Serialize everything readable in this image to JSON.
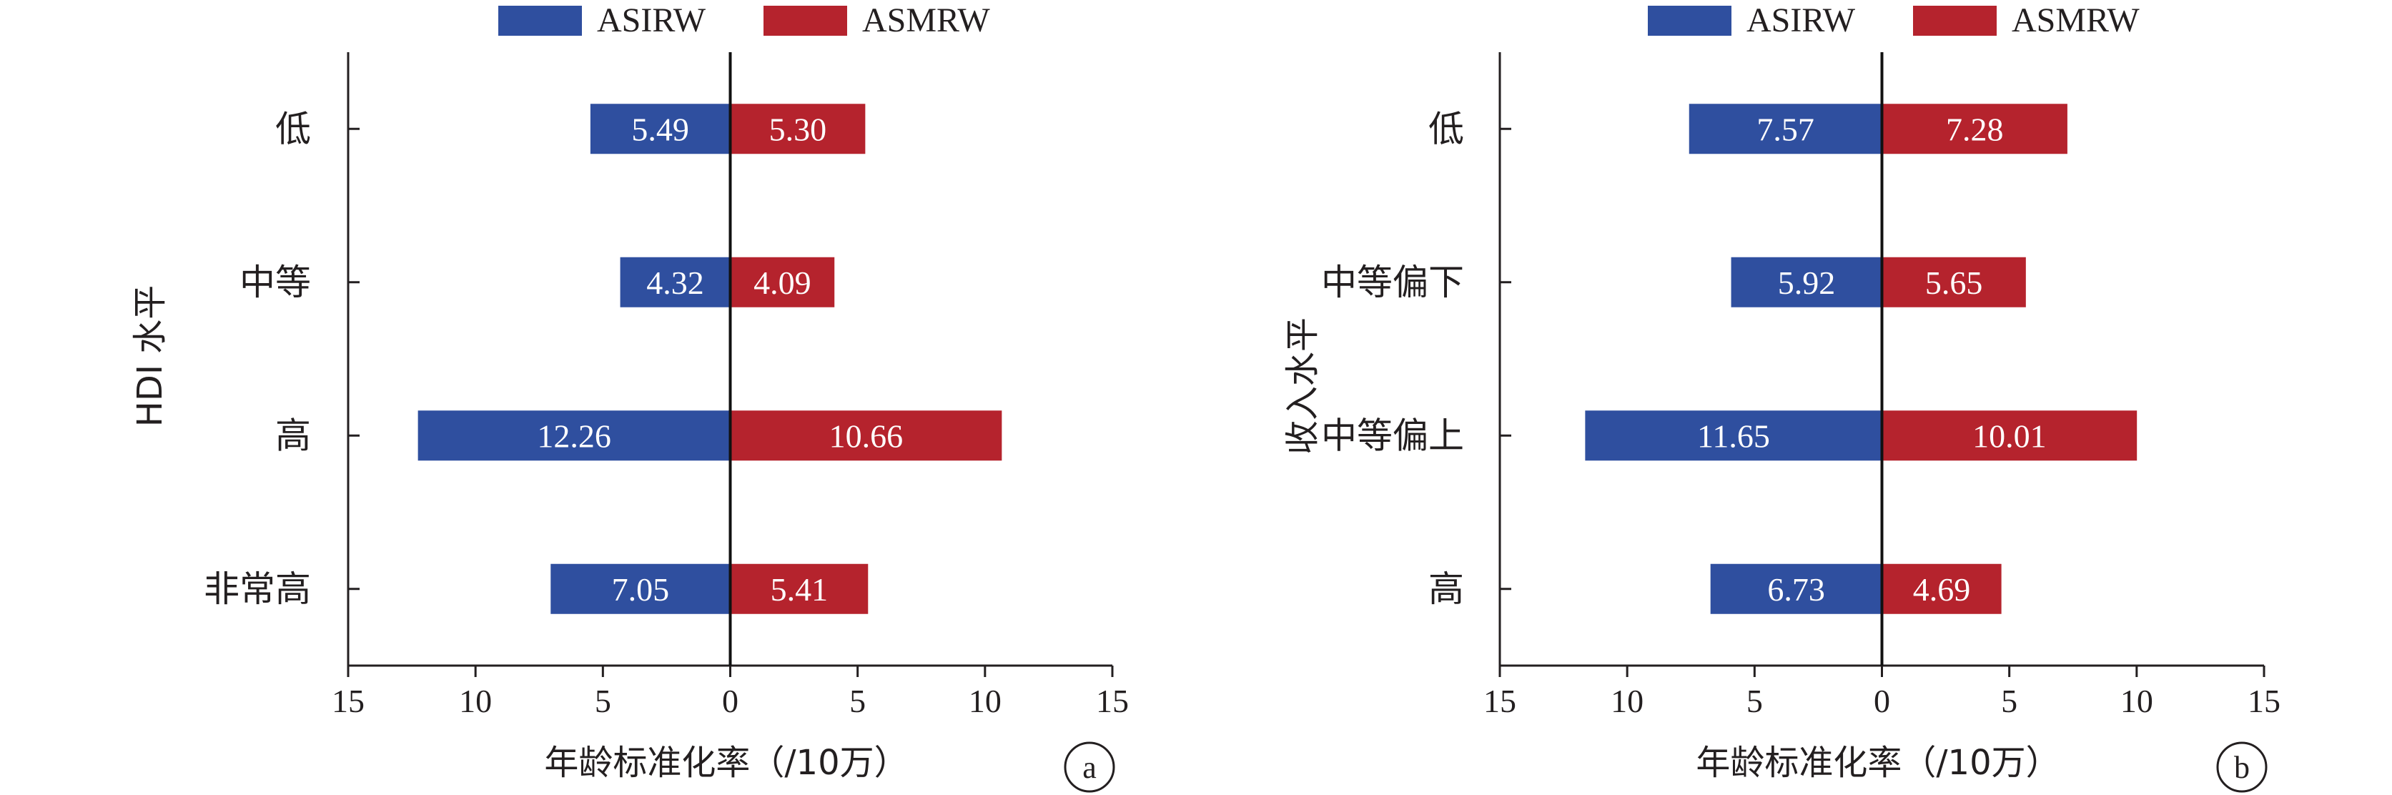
{
  "chart_data": [
    {
      "type": "bar",
      "orientation": "horizontal-diverging",
      "panel_label": "a",
      "ylabel": "HDI 水平",
      "xlabel": "年龄标准化率（/10万）",
      "categories": [
        "低",
        "中等",
        "高",
        "非常高"
      ],
      "series": [
        {
          "name": "ASIRW",
          "values": [
            5.49,
            4.32,
            12.26,
            7.05
          ],
          "value_labels": [
            "5.49",
            "4.32",
            "12.26",
            "7.05"
          ],
          "color": "#2f4f9f",
          "direction": "left"
        },
        {
          "name": "ASMRW",
          "values": [
            5.3,
            4.09,
            10.66,
            5.41
          ],
          "value_labels": [
            "5.30",
            "4.09",
            "10.66",
            "5.41"
          ],
          "color": "#b5232d",
          "direction": "right"
        }
      ],
      "xlim": [
        -15,
        15
      ],
      "xticks": [
        -15,
        -10,
        -5,
        0,
        5,
        10,
        15
      ],
      "xtick_labels": [
        "15",
        "10",
        "5",
        "0",
        "5",
        "10",
        "15"
      ],
      "legend": "top-center",
      "grid": false
    },
    {
      "type": "bar",
      "orientation": "horizontal-diverging",
      "panel_label": "b",
      "ylabel": "收入水平",
      "xlabel": "年龄标准化率（/10万）",
      "categories": [
        "低",
        "中等偏下",
        "中等偏上",
        "高"
      ],
      "series": [
        {
          "name": "ASIRW",
          "values": [
            7.57,
            5.92,
            11.65,
            6.73
          ],
          "value_labels": [
            "7.57",
            "5.92",
            "11.65",
            "6.73"
          ],
          "color": "#2f4f9f",
          "direction": "left"
        },
        {
          "name": "ASMRW",
          "values": [
            7.28,
            5.65,
            10.01,
            4.69
          ],
          "value_labels": [
            "7.28",
            "5.65",
            "10.01",
            "4.69"
          ],
          "color": "#b5232d",
          "direction": "right"
        }
      ],
      "xlim": [
        -15,
        15
      ],
      "xticks": [
        -15,
        -10,
        -5,
        0,
        5,
        10,
        15
      ],
      "xtick_labels": [
        "15",
        "10",
        "5",
        "0",
        "5",
        "10",
        "15"
      ],
      "legend": "top-center",
      "grid": false
    }
  ]
}
